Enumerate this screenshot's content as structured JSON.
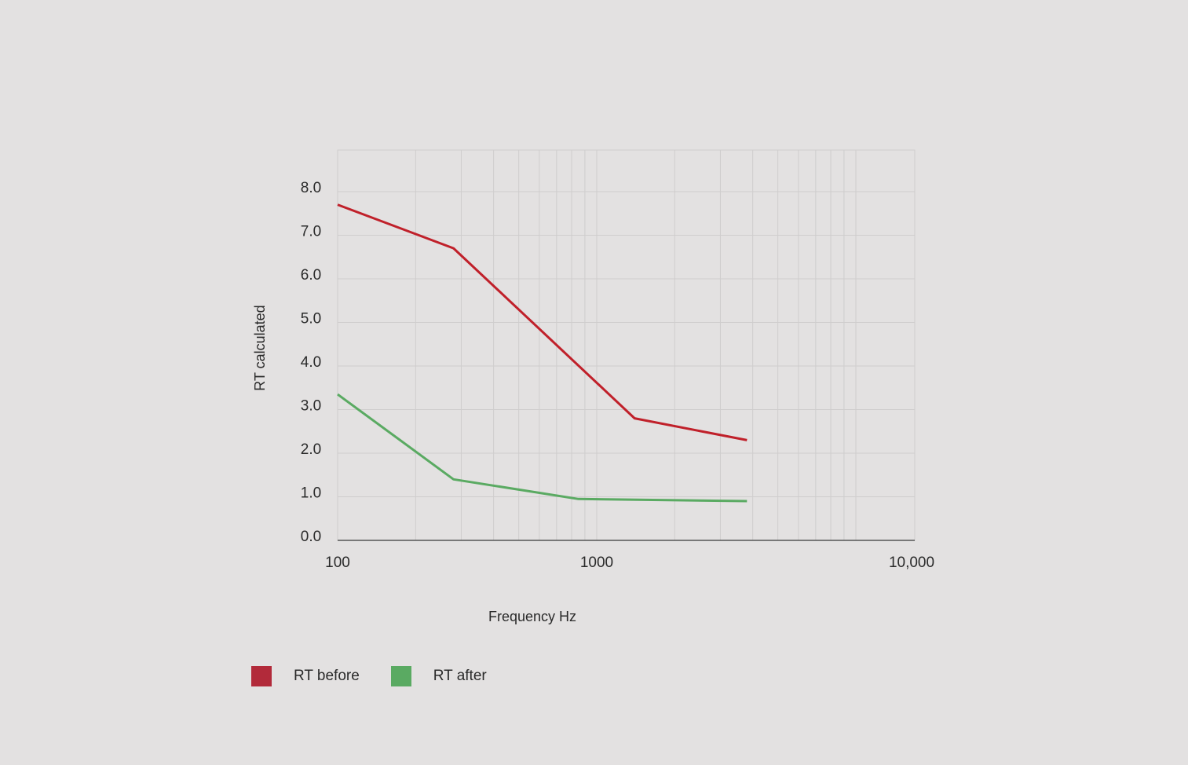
{
  "chart_data": {
    "type": "line",
    "xscale": "log",
    "xlim": [
      100,
      10000
    ],
    "ylim": [
      0,
      9
    ],
    "xlabel": "Frequency Hz",
    "ylabel": "RT calculated",
    "xticks": [
      100,
      1000,
      10000
    ],
    "xtick_labels": [
      "100",
      "1000",
      "10,000"
    ],
    "yticks": [
      0,
      1,
      2,
      3,
      4,
      5,
      6,
      7,
      8
    ],
    "ytick_labels": [
      "0.0",
      "1.0",
      "2.0",
      "3.0",
      "4.0",
      "5.0",
      "6.0",
      "7.0",
      "8.0"
    ],
    "grid": true,
    "legend_position": "bottom-left",
    "series": [
      {
        "name": "RT before",
        "color": "#c0202a",
        "legend_color": "#b22a3a",
        "points": [
          [
            100,
            7.7
          ],
          [
            280,
            6.7
          ],
          [
            1400,
            2.8
          ],
          [
            3800,
            2.3
          ]
        ]
      },
      {
        "name": "RT after",
        "color": "#5aaa62",
        "legend_color": "#5aaa62",
        "points": [
          [
            100,
            3.35
          ],
          [
            280,
            1.4
          ],
          [
            850,
            0.95
          ],
          [
            3800,
            0.9
          ]
        ]
      }
    ]
  }
}
